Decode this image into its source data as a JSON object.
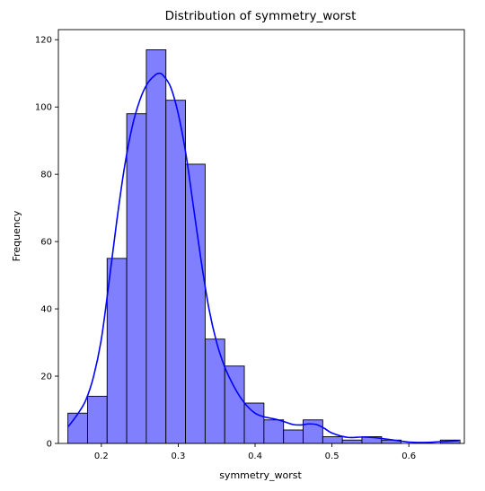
{
  "chart_data": {
    "type": "bar",
    "subtype": "histogram",
    "title": "Distribution of symmetry_worst",
    "xlabel": "symmetry_worst",
    "ylabel": "Frequency",
    "xlim": [
      0.1441,
      0.6722
    ],
    "ylim": [
      0,
      123
    ],
    "xticks": [
      0.2,
      0.3,
      0.4,
      0.5,
      0.6
    ],
    "yticks": [
      0,
      20,
      40,
      60,
      80,
      100,
      120
    ],
    "grid": false,
    "legend": "none",
    "bin_start": 0.1565,
    "bin_width": 0.0255,
    "counts": [
      9,
      14,
      55,
      98,
      117,
      102,
      83,
      31,
      23,
      12,
      7,
      4,
      7,
      2,
      1,
      2,
      1,
      0,
      0,
      1
    ],
    "bar_fill": "#8080ff",
    "bar_edge": "#000000",
    "kde_color": "#0000ff",
    "kde": {
      "x": [
        0.157,
        0.17,
        0.18,
        0.19,
        0.2,
        0.21,
        0.22,
        0.23,
        0.24,
        0.25,
        0.26,
        0.27,
        0.275,
        0.28,
        0.29,
        0.3,
        0.31,
        0.32,
        0.33,
        0.34,
        0.35,
        0.36,
        0.37,
        0.38,
        0.39,
        0.4,
        0.41,
        0.42,
        0.43,
        0.44,
        0.45,
        0.46,
        0.47,
        0.48,
        0.49,
        0.5,
        0.52,
        0.54,
        0.56,
        0.58,
        0.6,
        0.62,
        0.64,
        0.665
      ],
      "y": [
        5,
        9,
        13,
        20,
        31,
        48,
        66,
        82,
        94,
        102,
        107,
        109.5,
        110,
        109.5,
        106,
        98,
        86,
        70,
        54,
        40,
        30,
        23,
        18,
        14,
        11,
        9,
        8,
        7.5,
        7,
        6.3,
        5.6,
        5.5,
        5.8,
        5.6,
        4.5,
        3.1,
        1.8,
        1.9,
        1.6,
        1.0,
        0.4,
        0.3,
        0.5,
        0.8
      ]
    }
  }
}
